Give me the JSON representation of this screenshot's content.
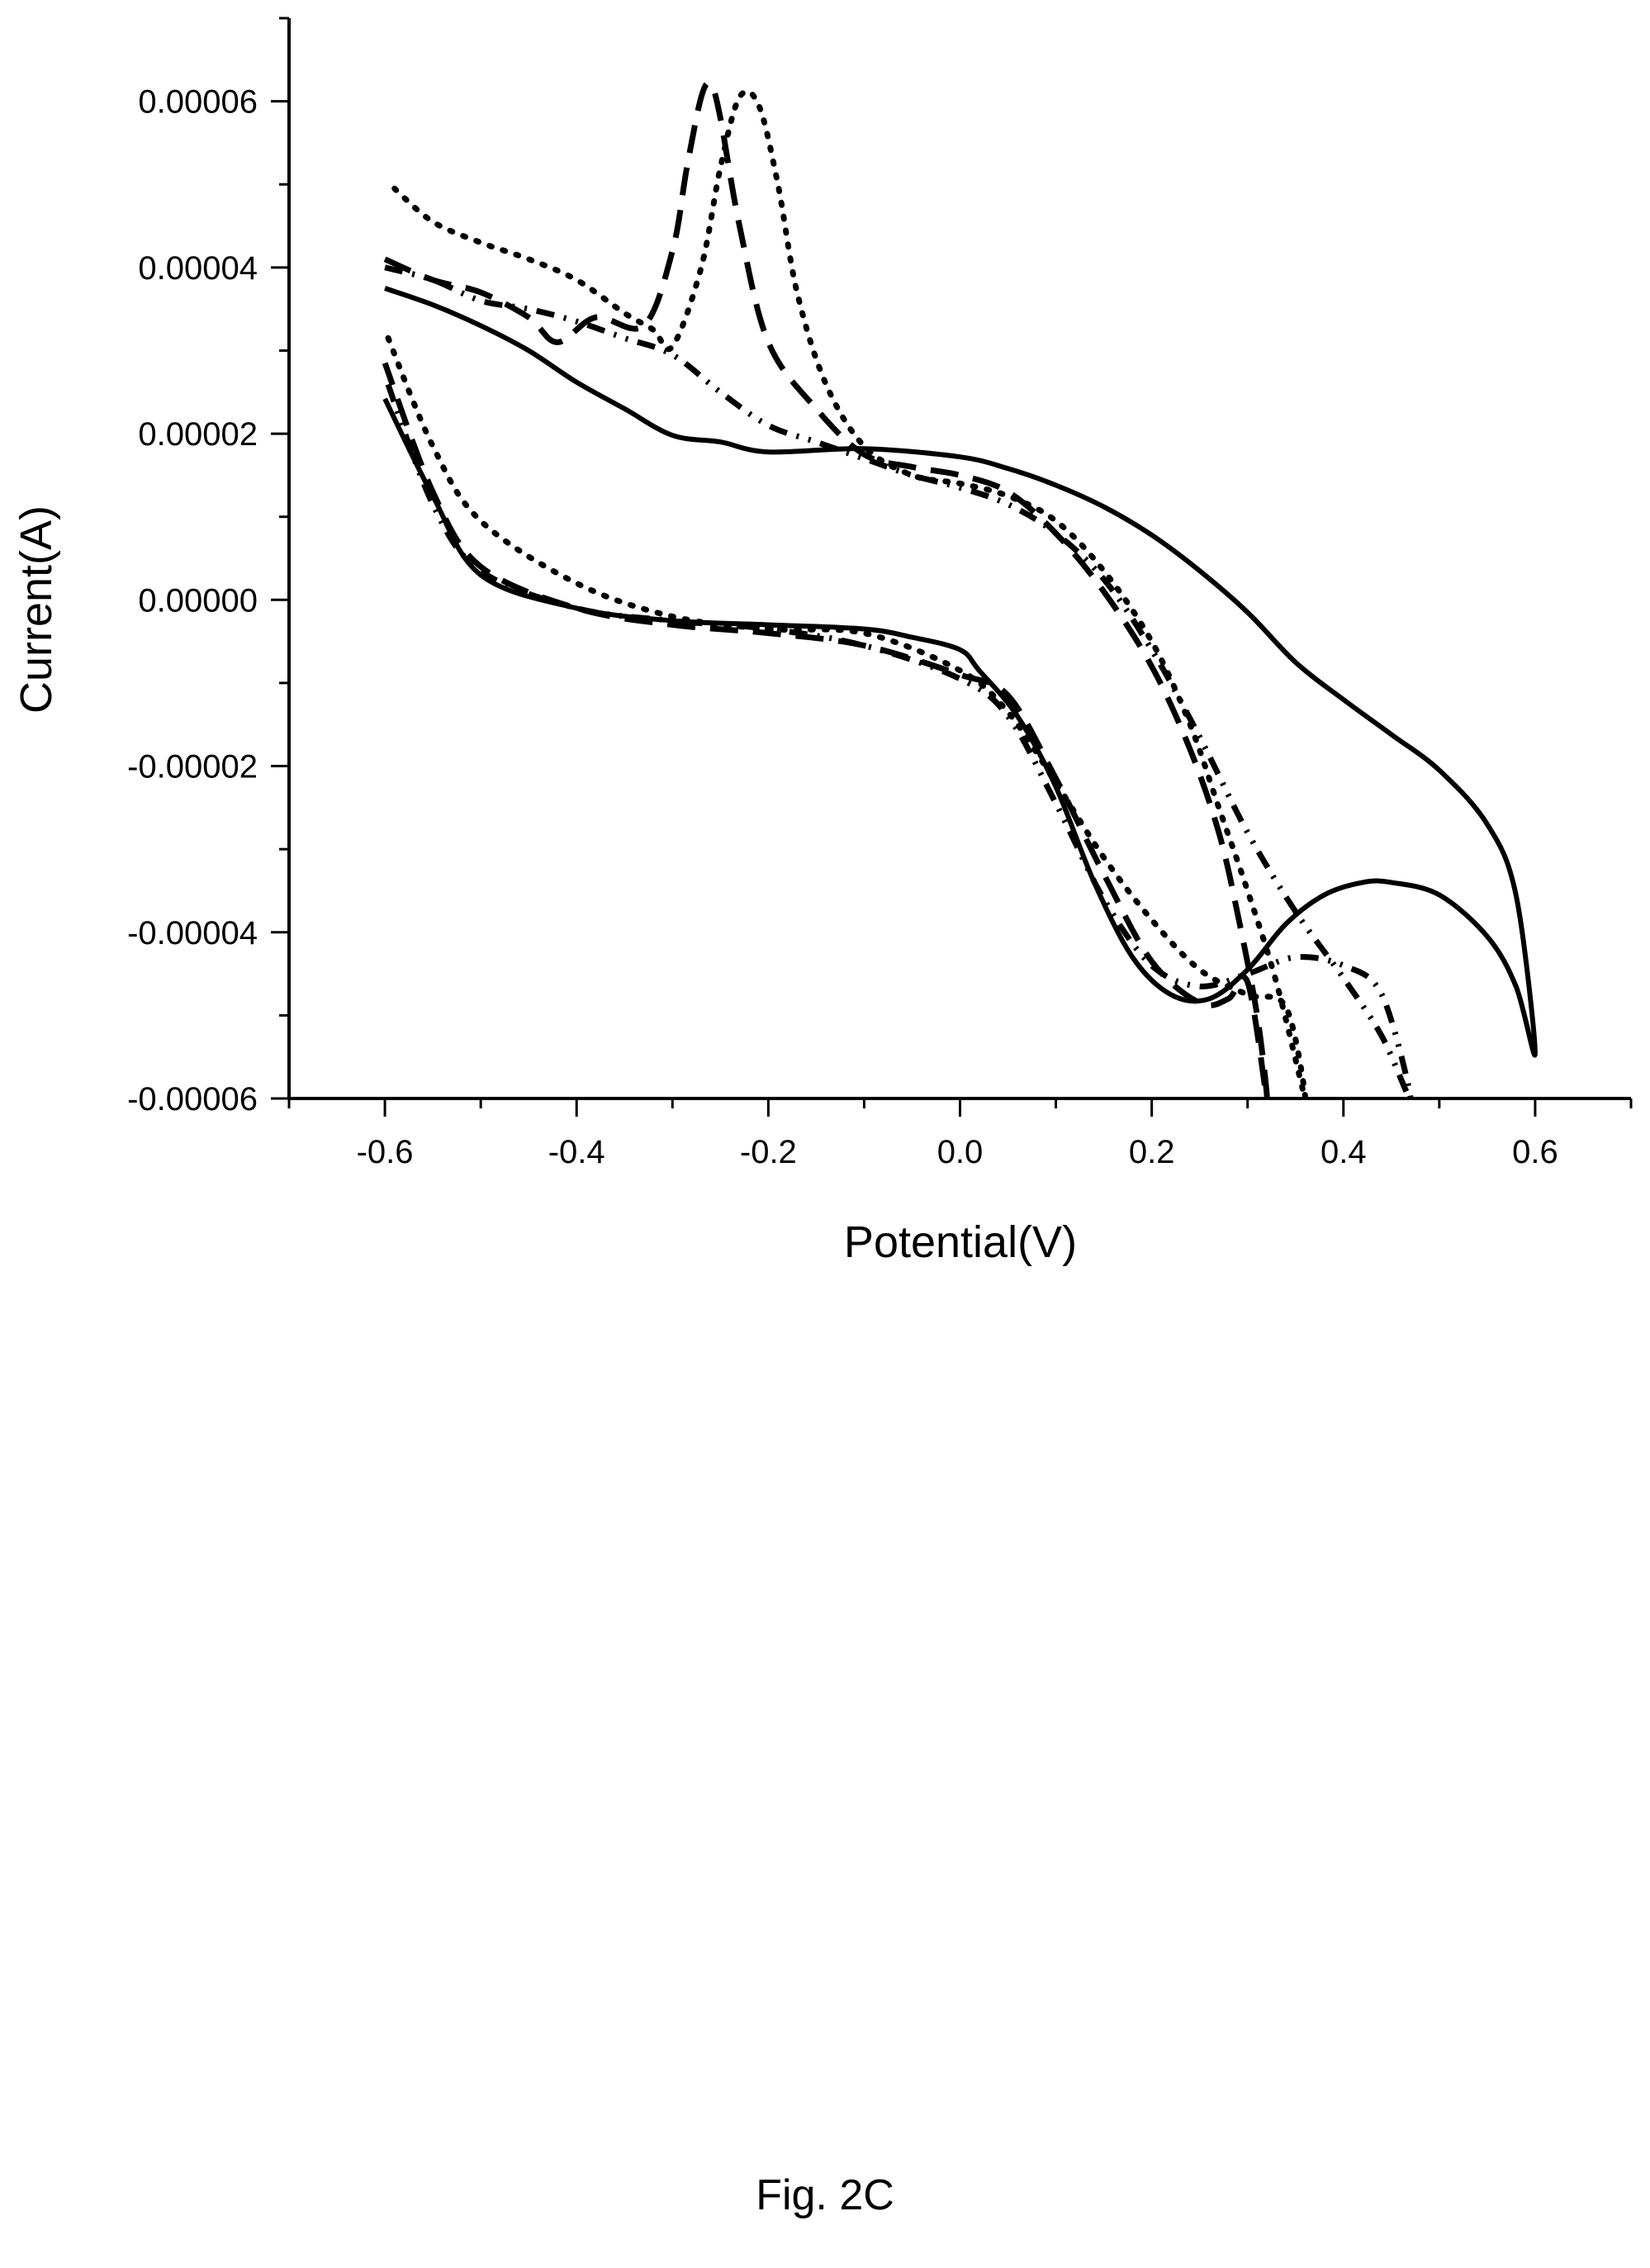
{
  "figure": {
    "caption": "Fig. 2C"
  },
  "chart_data": {
    "type": "line",
    "xlabel": "Potential(V)",
    "ylabel": "Current(A)",
    "xlim": [
      -0.7,
      0.7
    ],
    "ylim": [
      -6e-05,
      7e-05
    ],
    "x_ticks": [
      -0.6,
      -0.4,
      -0.2,
      0.0,
      0.2,
      0.4,
      0.6
    ],
    "x_tick_labels": [
      "-0.6",
      "-0.4",
      "-0.2",
      "0.0",
      "0.2",
      "0.4",
      "0.6"
    ],
    "y_ticks": [
      -6e-05,
      -4e-05,
      -2e-05,
      0.0,
      2e-05,
      4e-05,
      6e-05
    ],
    "y_tick_labels": [
      "-0.00006",
      "-0.00004",
      "-0.00002",
      "0.00000",
      "0.00002",
      "0.00004",
      "0.00006"
    ],
    "grid": false,
    "legend": "none",
    "series": [
      {
        "line_style": "solid",
        "color": "#000000",
        "x": [
          -0.6,
          -0.55,
          -0.5,
          -0.45,
          -0.4,
          -0.35,
          -0.3,
          -0.25,
          -0.2,
          -0.1,
          0.0,
          0.05,
          0.1,
          0.15,
          0.2,
          0.25,
          0.3,
          0.35,
          0.4,
          0.45,
          0.5,
          0.55,
          0.58,
          0.6,
          0.58,
          0.55,
          0.5,
          0.45,
          0.42,
          0.38,
          0.34,
          0.3,
          0.26,
          0.22,
          0.18,
          0.14,
          0.1,
          0.06,
          0.02,
          0.0,
          -0.05,
          -0.1,
          -0.2,
          -0.3,
          -0.4,
          -0.5,
          -0.55,
          -0.6
        ],
        "y": [
          3.75e-05,
          3.55e-05,
          3.3e-05,
          3e-05,
          2.62e-05,
          2.3e-05,
          1.98e-05,
          1.9e-05,
          1.78e-05,
          1.82e-05,
          1.72e-05,
          1.58e-05,
          1.38e-05,
          1.12e-05,
          7.8e-06,
          3.5e-06,
          -1.5e-06,
          -7.5e-06,
          -1.2e-05,
          -1.62e-05,
          -2.05e-05,
          -2.7e-05,
          -3.55e-05,
          -5.45e-05,
          -4.65e-05,
          -4.05e-05,
          -3.55e-05,
          -3.4e-05,
          -3.4e-05,
          -3.55e-05,
          -3.9e-05,
          -4.45e-05,
          -4.8e-05,
          -4.75e-05,
          -4.3e-05,
          -3.4e-05,
          -2.25e-05,
          -1.4e-05,
          -8.5e-06,
          -6e-06,
          -4.5e-06,
          -3.5e-06,
          -3e-06,
          -2.5e-06,
          -1e-06,
          3e-06,
          1.25e-05,
          2.42e-05
        ]
      },
      {
        "line_style": "dash",
        "color": "#000000",
        "x": [
          -0.6,
          -0.55,
          -0.5,
          -0.45,
          -0.42,
          -0.38,
          -0.33,
          -0.3,
          -0.285,
          -0.27,
          -0.26,
          -0.25,
          -0.23,
          -0.2,
          -0.15,
          -0.1,
          -0.05,
          0.0,
          0.05,
          0.1,
          0.15,
          0.2,
          0.24,
          0.27,
          0.29,
          0.31,
          0.32,
          0.3,
          0.28,
          0.25,
          0.2,
          0.15,
          0.1,
          0.05,
          0.0,
          -0.1,
          -0.2,
          -0.3,
          -0.4,
          -0.5,
          -0.55,
          -0.6
        ],
        "y": [
          4.1e-05,
          3.85e-05,
          3.7e-05,
          3.4e-05,
          3.1e-05,
          3.4e-05,
          3.3e-05,
          4.2e-05,
          5.2e-05,
          6.05e-05,
          6.2e-05,
          5.8e-05,
          4.5e-05,
          3.1e-05,
          2.3e-05,
          1.75e-05,
          1.6e-05,
          1.5e-05,
          1.3e-05,
          8e-06,
          1e-06,
          -8e-06,
          -1.8e-05,
          -2.8e-05,
          -3.8e-05,
          -5e-05,
          -6e-05,
          -4.6e-05,
          -4.8e-05,
          -4.85e-05,
          -4.35e-05,
          -3.3e-05,
          -2.15e-05,
          -1.15e-05,
          -9e-06,
          -5.5e-06,
          -4e-06,
          -3e-06,
          -1e-06,
          4e-06,
          1.3e-05,
          2.85e-05
        ]
      },
      {
        "line_style": "dot",
        "color": "#000000",
        "x": [
          -0.59,
          -0.55,
          -0.5,
          -0.45,
          -0.4,
          -0.35,
          -0.32,
          -0.3,
          -0.27,
          -0.25,
          -0.23,
          -0.21,
          -0.19,
          -0.17,
          -0.14,
          -0.1,
          -0.05,
          0.0,
          0.05,
          0.1,
          0.15,
          0.2,
          0.24,
          0.27,
          0.3,
          0.33,
          0.36,
          0.34,
          0.3,
          0.25,
          0.2,
          0.15,
          0.1,
          0.05,
          0.0,
          -0.1,
          -0.2,
          -0.3,
          -0.4,
          -0.5,
          -0.55,
          -0.6
        ],
        "y": [
          4.95e-05,
          4.55e-05,
          4.3e-05,
          4.1e-05,
          3.85e-05,
          3.45e-05,
          3.25e-05,
          3.05e-05,
          4e-05,
          5.2e-05,
          6.05e-05,
          5.95e-05,
          5e-05,
          3.7e-05,
          2.6e-05,
          1.85e-05,
          1.5e-05,
          1.4e-05,
          1.25e-05,
          9.5e-06,
          3.5e-06,
          -5e-06,
          -1.5e-05,
          -2.5e-05,
          -3.5e-05,
          -4.6e-05,
          -6e-05,
          -4.9e-05,
          -4.75e-05,
          -4.45e-05,
          -3.85e-05,
          -3.1e-05,
          -2.2e-05,
          -1.35e-05,
          -8.5e-06,
          -4e-06,
          -3.5e-06,
          -2e-06,
          2e-06,
          9.5e-06,
          1.85e-05,
          3.25e-05
        ]
      },
      {
        "line_style": "dash-dot-dot",
        "color": "#000000",
        "x": [
          -0.6,
          -0.55,
          -0.5,
          -0.45,
          -0.4,
          -0.35,
          -0.3,
          -0.25,
          -0.2,
          -0.15,
          -0.1,
          -0.05,
          0.0,
          0.05,
          0.1,
          0.15,
          0.2,
          0.25,
          0.3,
          0.35,
          0.4,
          0.44,
          0.47,
          0.44,
          0.4,
          0.35,
          0.3,
          0.25,
          0.2,
          0.15,
          0.1,
          0.05,
          0.0,
          -0.1,
          -0.2,
          -0.3,
          -0.4,
          -0.5,
          -0.55,
          -0.6
        ],
        "y": [
          4e-05,
          3.85e-05,
          3.6e-05,
          3.5e-05,
          3.35e-05,
          3.15e-05,
          2.95e-05,
          2.5e-05,
          2.1e-05,
          1.9e-05,
          1.7e-05,
          1.5e-05,
          1.35e-05,
          1.15e-05,
          8e-06,
          2.5e-06,
          -6e-06,
          -1.65e-05,
          -2.8e-05,
          -3.75e-05,
          -4.55e-05,
          -5.25e-05,
          -6e-05,
          -4.75e-05,
          -4.4e-05,
          -4.3e-05,
          -4.5e-05,
          -4.65e-05,
          -4.4e-05,
          -3.6e-05,
          -2.45e-05,
          -1.4e-05,
          -9.5e-06,
          -5.5e-06,
          -3.5e-06,
          -2.5e-06,
          -1e-06,
          3.5e-06,
          1.15e-05,
          2.7e-05
        ]
      }
    ]
  }
}
